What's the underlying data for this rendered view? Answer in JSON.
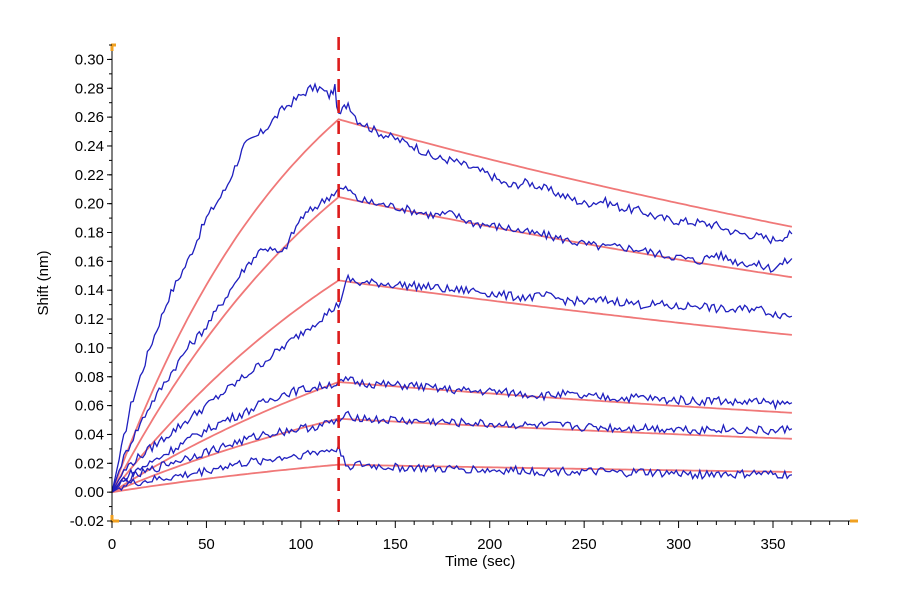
{
  "chart_data": {
    "type": "line",
    "title": "",
    "xlabel": "Time (sec)",
    "ylabel": "Shift (nm)",
    "xlim": [
      0,
      395
    ],
    "ylim": [
      -0.02,
      0.31
    ],
    "xticks": [
      0,
      50,
      100,
      150,
      200,
      250,
      300,
      350
    ],
    "yticks": [
      -0.02,
      0.0,
      0.02,
      0.04,
      0.06,
      0.08,
      0.1,
      0.12,
      0.14,
      0.16,
      0.18,
      0.2,
      0.22,
      0.24,
      0.26,
      0.28,
      0.3
    ],
    "grid": false,
    "legend": "none",
    "marker_line": {
      "x": 120,
      "color": "#dd1c1c"
    },
    "colors": {
      "measured": "#1f1fbf",
      "fit": "#f07878",
      "axis_corner": "#f0a020"
    },
    "series": [
      {
        "measured": {
          "x": [
            0,
            5,
            10,
            20,
            30,
            40,
            50,
            60,
            70,
            80,
            90,
            100,
            105,
            110,
            115,
            118,
            120,
            122,
            125,
            130,
            140,
            150,
            160,
            170,
            180,
            190,
            200,
            210,
            220,
            230,
            240,
            250,
            260,
            270,
            280,
            290,
            300,
            310,
            320,
            330,
            340,
            350,
            360
          ],
          "y": [
            0.0,
            0.03,
            0.06,
            0.1,
            0.135,
            0.16,
            0.19,
            0.21,
            0.24,
            0.25,
            0.265,
            0.275,
            0.28,
            0.28,
            0.275,
            0.28,
            0.26,
            0.265,
            0.27,
            0.258,
            0.25,
            0.245,
            0.24,
            0.232,
            0.23,
            0.225,
            0.22,
            0.212,
            0.215,
            0.21,
            0.205,
            0.2,
            0.202,
            0.197,
            0.195,
            0.19,
            0.188,
            0.187,
            0.185,
            0.18,
            0.178,
            0.175,
            0.179
          ]
        },
        "fit": {
          "x": [
            0,
            120,
            360
          ],
          "plateau": 0.38,
          "k_on": 0.0095,
          "y_end": 0.184
        }
      },
      {
        "measured": {
          "x": [
            0,
            5,
            10,
            20,
            30,
            40,
            50,
            60,
            70,
            80,
            90,
            100,
            110,
            115,
            120,
            125,
            130,
            140,
            150,
            160,
            170,
            180,
            190,
            200,
            210,
            220,
            230,
            240,
            250,
            260,
            270,
            280,
            290,
            300,
            310,
            320,
            330,
            340,
            350,
            360
          ],
          "y": [
            0.0,
            0.02,
            0.035,
            0.06,
            0.08,
            0.1,
            0.115,
            0.135,
            0.155,
            0.17,
            0.165,
            0.19,
            0.2,
            0.205,
            0.21,
            0.21,
            0.203,
            0.2,
            0.198,
            0.195,
            0.192,
            0.193,
            0.187,
            0.185,
            0.183,
            0.18,
            0.178,
            0.175,
            0.172,
            0.17,
            0.17,
            0.168,
            0.165,
            0.163,
            0.16,
            0.165,
            0.16,
            0.158,
            0.155,
            0.162
          ]
        },
        "fit": {
          "x": [
            0,
            120,
            360
          ],
          "plateau": 0.36,
          "k_on": 0.007,
          "y_end": 0.149
        }
      },
      {
        "measured": {
          "x": [
            0,
            5,
            10,
            20,
            30,
            40,
            50,
            60,
            70,
            80,
            90,
            100,
            110,
            115,
            120,
            125,
            130,
            140,
            150,
            160,
            170,
            180,
            190,
            200,
            210,
            220,
            230,
            240,
            250,
            260,
            270,
            280,
            290,
            300,
            310,
            320,
            330,
            340,
            350,
            360
          ],
          "y": [
            0.0,
            0.012,
            0.02,
            0.03,
            0.04,
            0.05,
            0.06,
            0.07,
            0.08,
            0.09,
            0.1,
            0.11,
            0.12,
            0.125,
            0.13,
            0.148,
            0.145,
            0.145,
            0.144,
            0.143,
            0.142,
            0.14,
            0.14,
            0.138,
            0.136,
            0.135,
            0.136,
            0.133,
            0.132,
            0.133,
            0.132,
            0.13,
            0.13,
            0.128,
            0.13,
            0.127,
            0.126,
            0.128,
            0.124,
            0.122
          ]
        },
        "fit": {
          "x": [
            0,
            120,
            360
          ],
          "plateau": 0.3,
          "k_on": 0.0056,
          "y_end": 0.109
        }
      },
      {
        "measured": {
          "x": [
            0,
            5,
            10,
            20,
            30,
            40,
            50,
            60,
            70,
            80,
            90,
            100,
            110,
            115,
            120,
            125,
            130,
            140,
            150,
            160,
            170,
            180,
            190,
            200,
            210,
            220,
            230,
            240,
            250,
            260,
            270,
            280,
            290,
            300,
            310,
            320,
            330,
            340,
            350,
            360
          ],
          "y": [
            0.0,
            0.008,
            0.013,
            0.02,
            0.028,
            0.036,
            0.043,
            0.05,
            0.055,
            0.062,
            0.068,
            0.071,
            0.073,
            0.075,
            0.075,
            0.078,
            0.076,
            0.075,
            0.074,
            0.074,
            0.072,
            0.071,
            0.07,
            0.07,
            0.069,
            0.068,
            0.067,
            0.068,
            0.066,
            0.066,
            0.065,
            0.066,
            0.064,
            0.064,
            0.063,
            0.064,
            0.062,
            0.063,
            0.061,
            0.062
          ]
        },
        "fit": {
          "x": [
            0,
            120,
            360
          ],
          "plateau": 0.18,
          "k_on": 0.0046,
          "y_end": 0.055
        }
      },
      {
        "measured": {
          "x": [
            0,
            5,
            10,
            20,
            30,
            40,
            50,
            60,
            70,
            80,
            90,
            100,
            110,
            115,
            120,
            125,
            130,
            140,
            150,
            160,
            170,
            180,
            190,
            200,
            210,
            220,
            230,
            240,
            250,
            260,
            270,
            280,
            290,
            300,
            310,
            320,
            330,
            340,
            350,
            360
          ],
          "y": [
            0.0,
            0.006,
            0.01,
            0.015,
            0.02,
            0.024,
            0.028,
            0.032,
            0.036,
            0.04,
            0.042,
            0.044,
            0.046,
            0.048,
            0.049,
            0.053,
            0.052,
            0.05,
            0.05,
            0.049,
            0.049,
            0.048,
            0.048,
            0.047,
            0.047,
            0.046,
            0.046,
            0.046,
            0.045,
            0.045,
            0.044,
            0.045,
            0.044,
            0.044,
            0.043,
            0.044,
            0.043,
            0.043,
            0.042,
            0.044
          ]
        },
        "fit": {
          "x": [
            0,
            120,
            360
          ],
          "plateau": 0.12,
          "k_on": 0.0046,
          "y_end": 0.037
        }
      },
      {
        "measured": {
          "x": [
            0,
            5,
            10,
            20,
            30,
            40,
            50,
            60,
            70,
            80,
            90,
            100,
            110,
            115,
            120,
            125,
            130,
            140,
            150,
            160,
            170,
            180,
            190,
            200,
            210,
            220,
            230,
            240,
            250,
            260,
            270,
            280,
            290,
            300,
            310,
            320,
            330,
            340,
            350,
            360
          ],
          "y": [
            0.0,
            0.004,
            0.006,
            0.008,
            0.01,
            0.012,
            0.015,
            0.018,
            0.02,
            0.022,
            0.024,
            0.026,
            0.028,
            0.029,
            0.03,
            0.018,
            0.019,
            0.018,
            0.017,
            0.017,
            0.016,
            0.016,
            0.016,
            0.015,
            0.015,
            0.015,
            0.014,
            0.015,
            0.014,
            0.014,
            0.013,
            0.014,
            0.013,
            0.013,
            0.012,
            0.013,
            0.012,
            0.013,
            0.012,
            0.012
          ]
        },
        "fit": {
          "x": [
            0,
            120,
            360
          ],
          "plateau": 0.045,
          "k_on": 0.0046,
          "y_end": 0.014
        }
      }
    ]
  }
}
